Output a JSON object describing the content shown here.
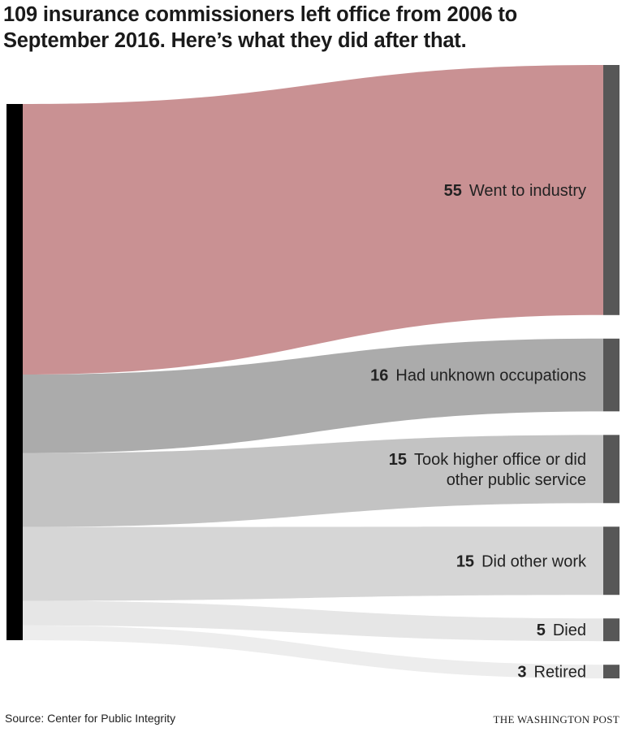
{
  "title_line1": "109 insurance commissioners left office from 2006 to",
  "title_line2": "September 2016. Here’s what they did after that.",
  "chart_data": {
    "type": "sankey",
    "source_total": 109,
    "flows": [
      {
        "value": 55,
        "label": [
          "Went to industry"
        ],
        "color": "#c99193"
      },
      {
        "value": 16,
        "label": [
          "Had unknown occupations"
        ],
        "color": "#ababab"
      },
      {
        "value": 15,
        "label": [
          "Took higher office or did",
          "other public service"
        ],
        "color": "#c3c3c3"
      },
      {
        "value": 15,
        "label": [
          "Did other work"
        ],
        "color": "#d6d6d6"
      },
      {
        "value": 5,
        "label": [
          "Died"
        ],
        "color": "#e6e6e6"
      },
      {
        "value": 3,
        "label": [
          "Retired"
        ],
        "color": "#ededed"
      }
    ],
    "node_color_source": "#000000",
    "node_color_target": "#575757"
  },
  "footer": {
    "source": "Source: Center for Public Integrity",
    "logo": "THE WASHINGTON POST"
  }
}
